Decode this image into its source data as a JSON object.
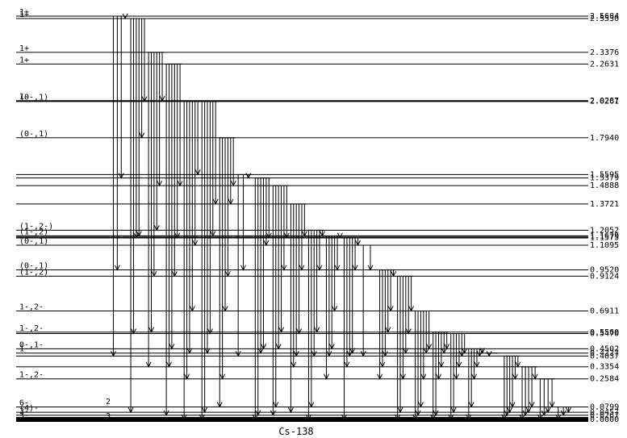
{
  "title": "Cs-138",
  "side_labels": {
    "top": "2",
    "bottom": "3"
  },
  "levels": [
    {
      "energy": "2.5684",
      "spin": "1+"
    },
    {
      "energy": "2.5530",
      "spin": "1+"
    },
    {
      "energy": "2.3376",
      "spin": "1+"
    },
    {
      "energy": "2.2631",
      "spin": "1+"
    },
    {
      "energy": "2.0287",
      "spin": "1-"
    },
    {
      "energy": "2.0261",
      "spin": "(0-,1)"
    },
    {
      "energy": "1.7940",
      "spin": "(0-,1)"
    },
    {
      "energy": "1.5595",
      "spin": ""
    },
    {
      "energy": "1.5379",
      "spin": ""
    },
    {
      "energy": "1.4888",
      "spin": ""
    },
    {
      "energy": "1.3721",
      "spin": ""
    },
    {
      "energy": "1.2052",
      "spin": "(1-,2-)"
    },
    {
      "energy": "1.1679",
      "spin": "(1-,2)"
    },
    {
      "energy": "1.1575",
      "spin": ""
    },
    {
      "energy": "1.1095",
      "spin": "(0-,1)"
    },
    {
      "energy": "0.9520",
      "spin": "(0-,1)"
    },
    {
      "energy": "0.9124",
      "spin": "(1-,2)"
    },
    {
      "energy": "0.6911",
      "spin": "1-,2-"
    },
    {
      "energy": "0.5560",
      "spin": "1-,2-"
    },
    {
      "energy": "0.5470",
      "spin": ""
    },
    {
      "energy": "0.4502",
      "spin": "0-,1-"
    },
    {
      "energy": "0.4227",
      "spin": "1-"
    },
    {
      "energy": "0.4037",
      "spin": ""
    },
    {
      "energy": "0.3354",
      "spin": ""
    },
    {
      "energy": "0.2584",
      "spin": "1-,2-"
    },
    {
      "energy": "0.0799",
      "spin": "6-"
    },
    {
      "energy": "0.0457",
      "spin": "(4)-"
    },
    {
      "energy": "0.0267",
      "spin": "3-"
    },
    {
      "energy": "0.0000",
      "spin": "3-"
    }
  ]
}
